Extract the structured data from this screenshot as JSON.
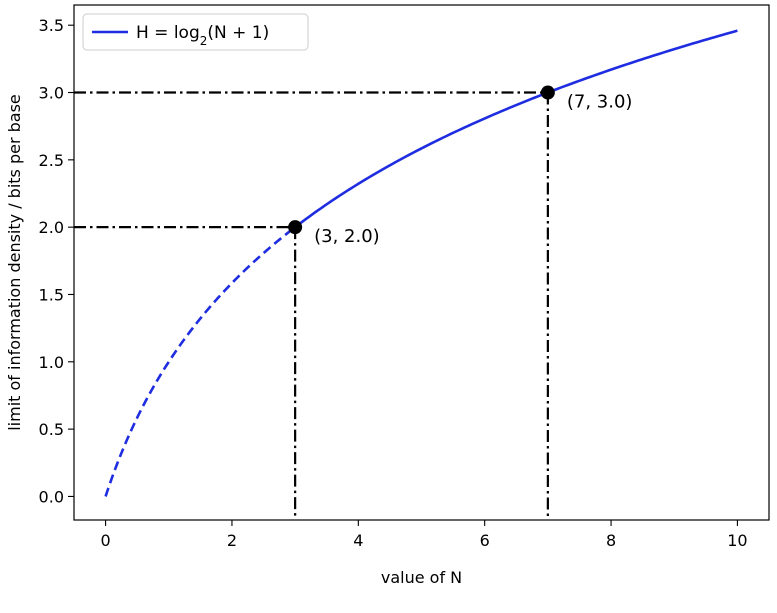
{
  "chart_data": {
    "type": "line",
    "xlabel": "value of N",
    "ylabel": "limit of information density / bits per base",
    "xlim": [
      -0.5,
      10.5
    ],
    "ylim": [
      -0.175,
      3.65
    ],
    "xticks": [
      0,
      2,
      4,
      6,
      8,
      10
    ],
    "yticks": [
      0.0,
      0.5,
      1.0,
      1.5,
      2.0,
      2.5,
      3.0,
      3.5
    ],
    "xtick_labels": [
      "0",
      "2",
      "4",
      "6",
      "8",
      "10"
    ],
    "ytick_labels": [
      "0.0",
      "0.5",
      "1.0",
      "1.5",
      "2.0",
      "2.5",
      "3.0",
      "3.5"
    ],
    "grid": false,
    "legend": {
      "placement": "top-left",
      "entries": [
        {
          "label_main": "H = log",
          "label_sub": "2",
          "label_rest": "(N + 1)"
        }
      ]
    },
    "series": [
      {
        "function": "log2(N + 1)",
        "color": "#1f2de0",
        "dashed_range": [
          0,
          3
        ],
        "solid_range": [
          3,
          10
        ]
      }
    ],
    "points": [
      {
        "x": 3,
        "y": 2.0,
        "label": "(3, 2.0)"
      },
      {
        "x": 7,
        "y": 3.0,
        "label": "(7, 3.0)"
      }
    ]
  }
}
